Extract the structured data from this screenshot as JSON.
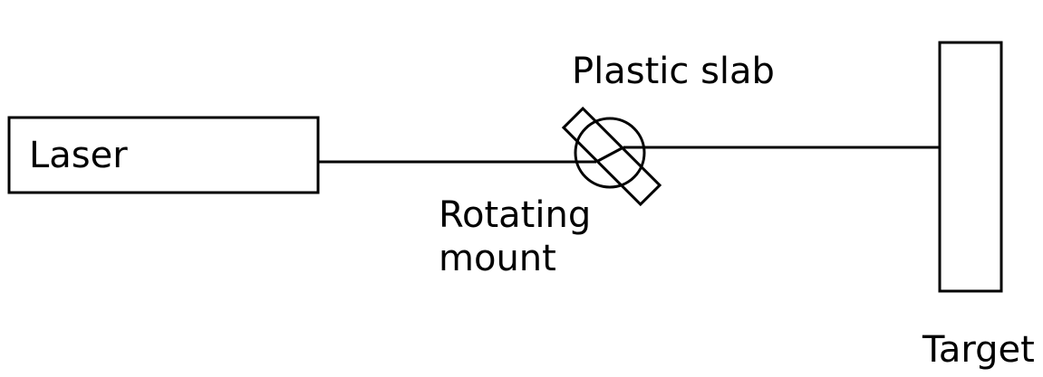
{
  "labels": {
    "laser": "Laser",
    "plastic_slab": "Plastic slab",
    "rotating_mount_line1": "Rotating",
    "rotating_mount_line2": "mount",
    "target": "Target"
  },
  "colors": {
    "stroke": "#000000",
    "background": "#ffffff"
  }
}
